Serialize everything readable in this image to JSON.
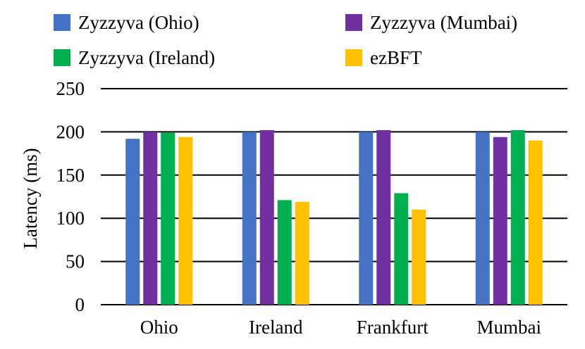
{
  "chart_data": {
    "type": "bar",
    "categories": [
      "Ohio",
      "Ireland",
      "Frankfurt",
      "Mumbai"
    ],
    "series": [
      {
        "name": "Zyzzyva (Ohio)",
        "color": "#4472C4",
        "values": [
          192,
          200,
          200,
          200
        ]
      },
      {
        "name": "Zyzzyva (Mumbai)",
        "color": "#7030A0",
        "values": [
          200,
          202,
          202,
          194
        ]
      },
      {
        "name": "Zyzzyva (Ireland)",
        "color": "#00B050",
        "values": [
          199,
          121,
          129,
          202
        ]
      },
      {
        "name": "ezBFT",
        "color": "#FFC000",
        "values": [
          194,
          119,
          110,
          190
        ]
      }
    ],
    "xlabel": "",
    "ylabel": "Latency (ms)",
    "ylim": [
      0,
      250
    ],
    "yticks": [
      0,
      50,
      100,
      150,
      200,
      250
    ],
    "grid": true,
    "legend_position": "top"
  }
}
